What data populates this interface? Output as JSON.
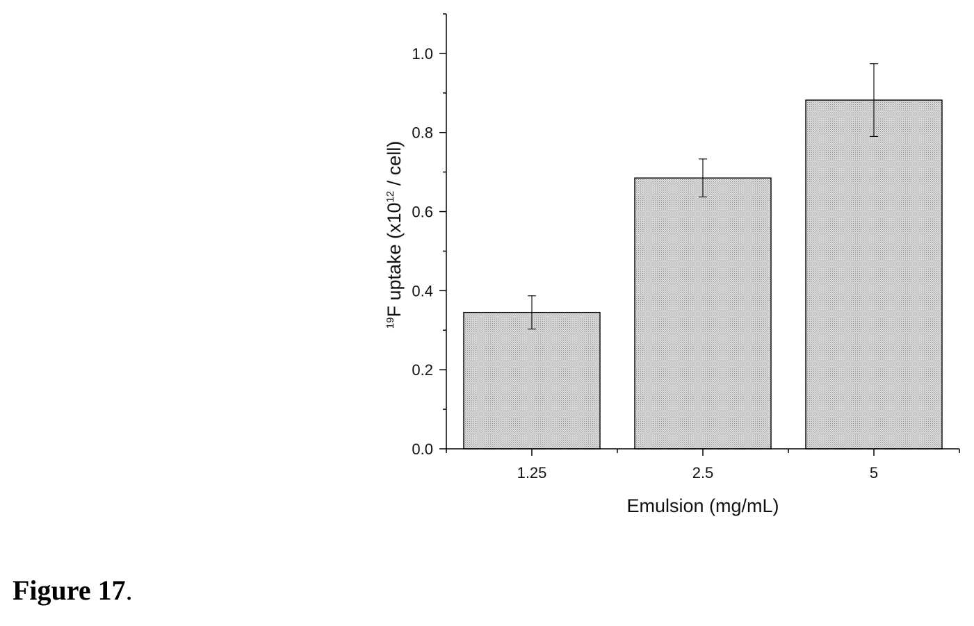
{
  "caption": {
    "label": "Figure 17",
    "punct": "."
  },
  "chart_data": {
    "type": "bar",
    "categories": [
      "1.25",
      "2.5",
      "5"
    ],
    "values": [
      0.345,
      0.685,
      0.882
    ],
    "errors": [
      0.042,
      0.048,
      0.092
    ],
    "xlabel": "Emulsion (mg/mL)",
    "ylabel": {
      "sup1": "19",
      "part1": "F uptake (x10",
      "sup2": "12",
      "part2": " / cell)"
    },
    "ylim": [
      0,
      1.1
    ],
    "yticks": [
      "0.0",
      "0.2",
      "0.4",
      "0.6",
      "0.8",
      "1.0"
    ],
    "bar_fill": "#d6d6d6",
    "grid": false
  }
}
